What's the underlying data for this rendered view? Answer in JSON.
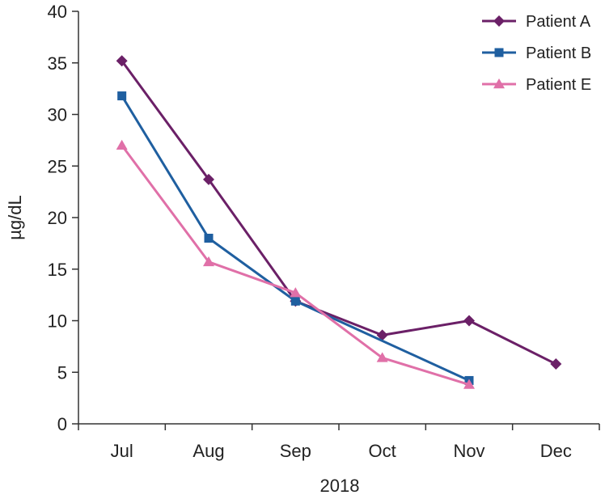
{
  "chart_data": {
    "type": "line",
    "xlabel": "2018",
    "ylabel": "µg/dL",
    "categories": [
      "Jul",
      "Aug",
      "Sep",
      "Oct",
      "Nov",
      "Dec"
    ],
    "ylim": [
      0,
      40
    ],
    "yticks": [
      "0",
      "5",
      "10",
      "15",
      "20",
      "25",
      "30",
      "35",
      "40"
    ],
    "grid": false,
    "legend_position": "top-right",
    "series": [
      {
        "name": "Patient A",
        "color": "#6b2067",
        "marker": "diamond",
        "values": [
          35.2,
          23.7,
          11.9,
          8.6,
          10.0,
          5.8
        ]
      },
      {
        "name": "Patient B",
        "color": "#1f5fa0",
        "marker": "square",
        "values": [
          31.8,
          18.0,
          11.9,
          null,
          4.2,
          null
        ]
      },
      {
        "name": "Patient E",
        "color": "#e070a8",
        "marker": "triangle",
        "values": [
          27.0,
          15.7,
          12.7,
          6.4,
          3.8,
          null
        ]
      }
    ]
  }
}
